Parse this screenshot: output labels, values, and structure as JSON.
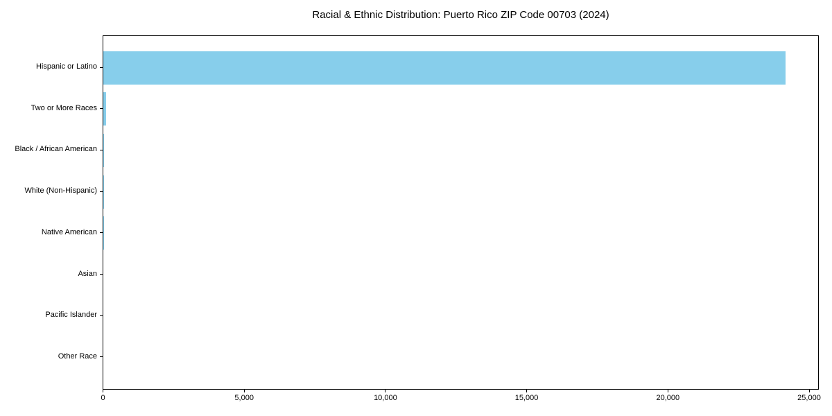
{
  "title": "Racial & Ethnic Distribution: Puerto Rico ZIP Code 00703 (2024)",
  "colors": {
    "bar": "#87CEEB",
    "axis": "#000000",
    "background": "#FFFFFF",
    "text": "#000000"
  },
  "chart_data": {
    "type": "bar",
    "orientation": "horizontal",
    "title": "Racial & Ethnic Distribution: Puerto Rico ZIP Code 00703 (2024)",
    "categories": [
      "Hispanic or Latino",
      "Two or More Races",
      "Black / African American",
      "White (Non-Hispanic)",
      "Native American",
      "Asian",
      "Pacific Islander",
      "Other Race"
    ],
    "values": [
      24150,
      100,
      20,
      10,
      10,
      0,
      0,
      0
    ],
    "xlabel": "",
    "ylabel": "",
    "xlim": [
      0,
      25000
    ],
    "xticks": [
      0,
      5000,
      10000,
      15000,
      20000,
      25000
    ],
    "xtick_labels": [
      "0",
      "5,000",
      "10,000",
      "15,000",
      "20,000",
      "25,000"
    ],
    "grid": false,
    "legend": false,
    "bar_color": "#87CEEB"
  }
}
